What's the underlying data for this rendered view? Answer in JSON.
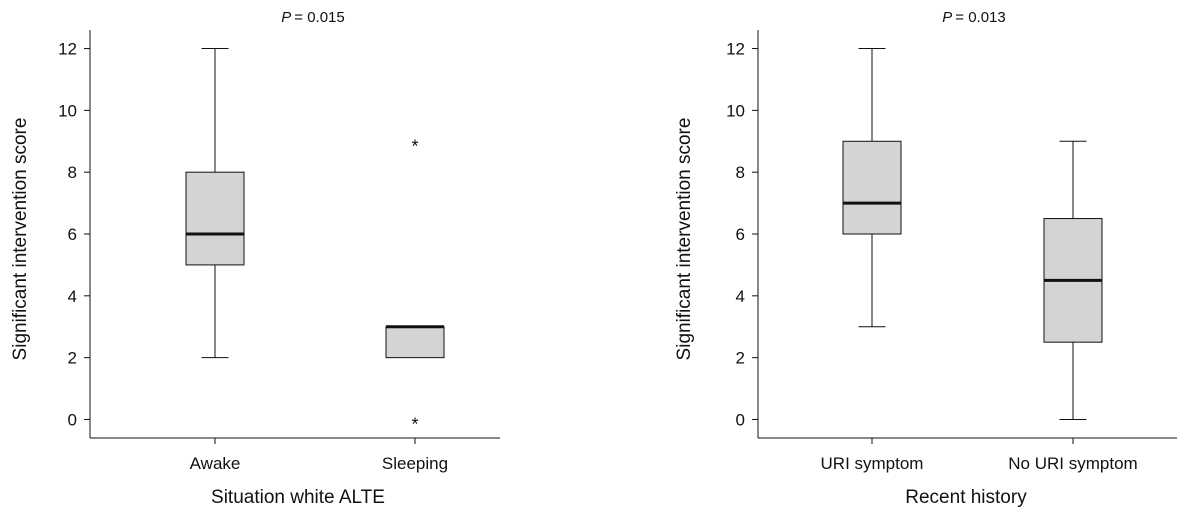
{
  "chart_data": [
    {
      "type": "boxplot",
      "title": "= 0.015",
      "title_prefix": "P",
      "xlabel": "Situation white ALTE",
      "ylabel": "Significant intervention score",
      "ylim": [
        -0.6,
        12.6
      ],
      "yticks": [
        0,
        2,
        4,
        6,
        8,
        10,
        12
      ],
      "grid": false,
      "box_color": "#d4d4d6",
      "categories": [
        "Awake",
        "Sleeping"
      ],
      "boxes": [
        {
          "whisker_low": 2,
          "q1": 5,
          "median": 6,
          "q3": 8,
          "whisker_high": 12,
          "outliers": []
        },
        {
          "whisker_low": 2,
          "q1": 2,
          "median": 3,
          "q3": 3,
          "whisker_high": 3,
          "outliers": [
            9,
            0
          ]
        }
      ]
    },
    {
      "type": "boxplot",
      "title": "= 0.013",
      "title_prefix": "P",
      "xlabel": "Recent history",
      "ylabel": "Significant intervention score",
      "ylim": [
        -0.6,
        12.6
      ],
      "yticks": [
        0,
        2,
        4,
        6,
        8,
        10,
        12
      ],
      "grid": false,
      "box_color": "#d4d4d6",
      "categories": [
        "URI symptom",
        "No URI symptom"
      ],
      "boxes": [
        {
          "whisker_low": 3,
          "q1": 6,
          "median": 7,
          "q3": 9,
          "whisker_high": 12,
          "outliers": []
        },
        {
          "whisker_low": 0,
          "q1": 2.5,
          "median": 4.5,
          "q3": 6.5,
          "whisker_high": 9,
          "outliers": []
        }
      ]
    }
  ]
}
